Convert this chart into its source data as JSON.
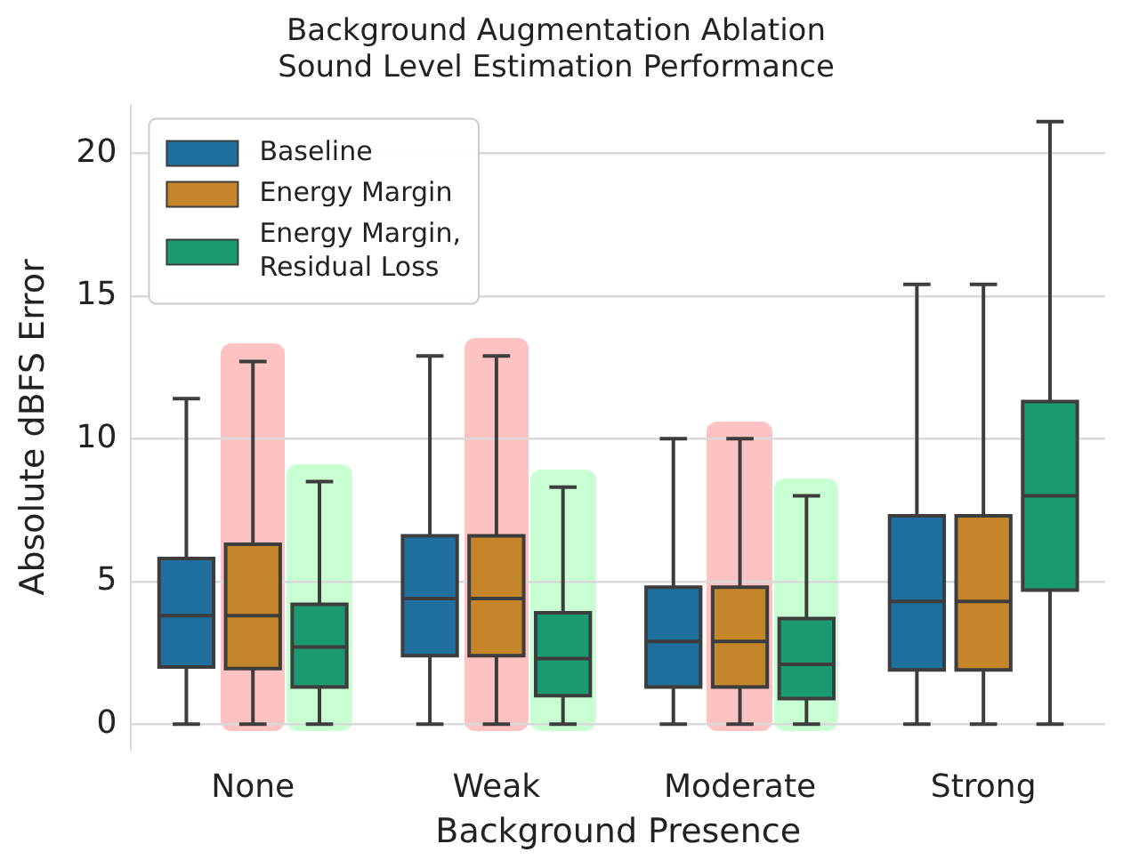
{
  "chart_data": {
    "type": "box",
    "title": "Background Augmentation Ablation",
    "subtitle": "Sound Level Estimation Performance",
    "xlabel": "Background Presence",
    "ylabel": "Absolute dBFS Error",
    "categories": [
      "None",
      "Weak",
      "Moderate",
      "Strong"
    ],
    "ylim": [
      -0.9,
      21.7
    ],
    "yticks": [
      0,
      5,
      10,
      15,
      20
    ],
    "grid": "y",
    "legend": "top left",
    "series": [
      {
        "name": "Baseline",
        "color": "#1f6f9f",
        "boxes": [
          {
            "low": 0,
            "q1": 2.0,
            "median": 3.8,
            "q3": 5.8,
            "high": 11.4
          },
          {
            "low": 0,
            "q1": 2.4,
            "median": 4.4,
            "q3": 6.6,
            "high": 12.9
          },
          {
            "low": 0,
            "q1": 1.3,
            "median": 2.9,
            "q3": 4.8,
            "high": 10.0
          },
          {
            "low": 0,
            "q1": 1.9,
            "median": 4.3,
            "q3": 7.3,
            "high": 15.4
          }
        ]
      },
      {
        "name": "Energy Margin",
        "color": "#c5862a",
        "boxes": [
          {
            "low": 0,
            "q1": 1.95,
            "median": 3.8,
            "q3": 6.3,
            "high": 12.7
          },
          {
            "low": 0,
            "q1": 2.4,
            "median": 4.4,
            "q3": 6.6,
            "high": 12.9
          },
          {
            "low": 0,
            "q1": 1.3,
            "median": 2.9,
            "q3": 4.8,
            "high": 10.0
          },
          {
            "low": 0,
            "q1": 1.9,
            "median": 4.3,
            "q3": 7.3,
            "high": 15.4
          }
        ]
      },
      {
        "name": "Energy Margin, Residual Loss",
        "color": "#1b9a72",
        "boxes": [
          {
            "low": 0,
            "q1": 1.3,
            "median": 2.7,
            "q3": 4.2,
            "high": 8.5
          },
          {
            "low": 0,
            "q1": 1.0,
            "median": 2.3,
            "q3": 3.9,
            "high": 8.3
          },
          {
            "low": 0,
            "q1": 0.9,
            "median": 2.1,
            "q3": 3.7,
            "high": 8.0
          },
          {
            "low": 0,
            "q1": 4.7,
            "median": 8.0,
            "q3": 11.3,
            "high": 21.1
          }
        ]
      }
    ]
  }
}
